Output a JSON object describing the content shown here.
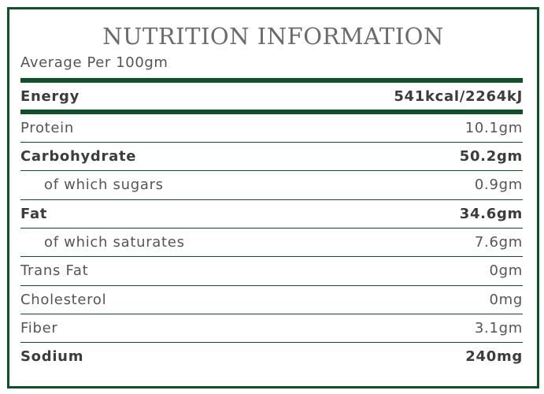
{
  "header": {
    "title": "NUTRITION INFORMATION",
    "subtitle": "Average Per 100gm"
  },
  "colors": {
    "accent": "#0c5128",
    "text": "#555555",
    "title": "#6b6b6b"
  },
  "rows": [
    {
      "label": "Energy",
      "value": "541kcal/2264kJ",
      "bold": true
    },
    {
      "label": "Protein",
      "value": "10.1gm",
      "bold": false
    },
    {
      "label": "Carbohydrate",
      "value": "50.2gm",
      "bold": true
    },
    {
      "label": "of which sugars",
      "value": "0.9gm",
      "bold": false,
      "indent": true
    },
    {
      "label": "Fat",
      "value": "34.6gm",
      "bold": true
    },
    {
      "label": "of which saturates",
      "value": "7.6gm",
      "bold": false,
      "indent": true
    },
    {
      "label": "Trans Fat",
      "value": "0gm",
      "bold": false
    },
    {
      "label": "Cholesterol",
      "value": "0mg",
      "bold": false
    },
    {
      "label": "Fiber",
      "value": "3.1gm",
      "bold": false
    },
    {
      "label": "Sodium",
      "value": "240mg",
      "bold": true
    }
  ]
}
